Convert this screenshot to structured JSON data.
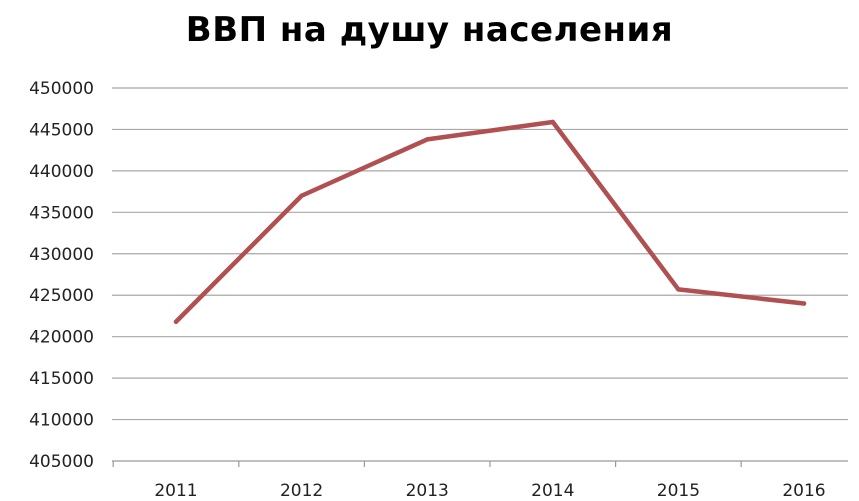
{
  "chart_data": {
    "type": "line",
    "title": "ВВП на душу населения",
    "xlabel": "",
    "ylabel": "",
    "categories": [
      "2011",
      "2012",
      "2013",
      "2014",
      "2015",
      "2016"
    ],
    "series": [
      {
        "values": [
          421800,
          437000,
          443800,
          445900,
          425700,
          424000
        ]
      }
    ],
    "ylim": [
      405000,
      450000
    ],
    "yticks": [
      405000,
      410000,
      415000,
      420000,
      425000,
      430000,
      435000,
      440000,
      445000,
      450000
    ],
    "grid": true,
    "legend": "none",
    "line_color": "#b05050"
  }
}
